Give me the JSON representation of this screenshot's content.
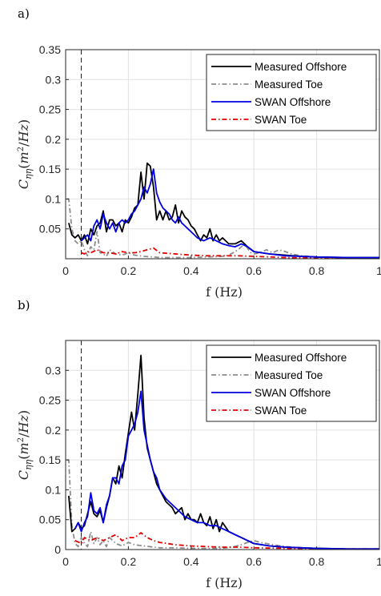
{
  "chart_data": [
    {
      "panel_label": "a)",
      "type": "line",
      "xlabel": "f (Hz)",
      "ylabel": "C_{ηη}(m²/Hz)",
      "xlim": [
        0,
        1
      ],
      "ylim": [
        0,
        0.35
      ],
      "xticks": [
        "0",
        "0.2",
        "0.4",
        "0.6",
        "0.8",
        "1"
      ],
      "yticks": [
        "0.05",
        "0.1",
        "0.15",
        "0.2",
        "0.25",
        "0.3",
        "0.35"
      ],
      "ytick_values": [
        0.05,
        0.1,
        0.15,
        0.2,
        0.25,
        0.3,
        0.35
      ],
      "vline_x": 0.05,
      "grid": true,
      "legend_position": "top-right",
      "series": [
        {
          "name": "Measured Offshore",
          "color": "#000000",
          "dash": "solid",
          "x": [
            0.01,
            0.02,
            0.03,
            0.04,
            0.05,
            0.06,
            0.07,
            0.08,
            0.09,
            0.1,
            0.11,
            0.12,
            0.13,
            0.14,
            0.15,
            0.16,
            0.17,
            0.18,
            0.19,
            0.2,
            0.21,
            0.22,
            0.23,
            0.24,
            0.25,
            0.26,
            0.27,
            0.28,
            0.29,
            0.3,
            0.31,
            0.32,
            0.33,
            0.34,
            0.35,
            0.36,
            0.37,
            0.38,
            0.39,
            0.4,
            0.41,
            0.42,
            0.43,
            0.44,
            0.45,
            0.46,
            0.47,
            0.48,
            0.49,
            0.5,
            0.52,
            0.54,
            0.56,
            0.58,
            0.6,
            0.65,
            0.7,
            0.75,
            0.8,
            0.9,
            1.0
          ],
          "y": [
            0.06,
            0.04,
            0.035,
            0.04,
            0.03,
            0.04,
            0.025,
            0.05,
            0.04,
            0.055,
            0.06,
            0.08,
            0.045,
            0.065,
            0.065,
            0.055,
            0.06,
            0.045,
            0.065,
            0.06,
            0.07,
            0.085,
            0.09,
            0.145,
            0.1,
            0.16,
            0.155,
            0.12,
            0.065,
            0.08,
            0.065,
            0.08,
            0.065,
            0.07,
            0.09,
            0.06,
            0.08,
            0.07,
            0.065,
            0.055,
            0.05,
            0.04,
            0.03,
            0.04,
            0.035,
            0.05,
            0.03,
            0.04,
            0.03,
            0.035,
            0.025,
            0.025,
            0.03,
            0.02,
            0.012,
            0.008,
            0.006,
            0.004,
            0.003,
            0.002,
            0.002
          ]
        },
        {
          "name": "Measured Toe",
          "color": "#8c8c8c",
          "dash": "6,3,1.5,3",
          "x": [
            0.005,
            0.01,
            0.02,
            0.03,
            0.04,
            0.05,
            0.06,
            0.07,
            0.08,
            0.09,
            0.1,
            0.11,
            0.12,
            0.13,
            0.14,
            0.16,
            0.18,
            0.2,
            0.22,
            0.25,
            0.28,
            0.3,
            0.35,
            0.4,
            0.45,
            0.5,
            0.52,
            0.55,
            0.57,
            0.59,
            0.6,
            0.62,
            0.64,
            0.66,
            0.68,
            0.7,
            0.72,
            0.75,
            0.8,
            0.9,
            1.0
          ],
          "y": [
            0.1,
            0.1,
            0.05,
            0.03,
            0.025,
            0.03,
            0.015,
            0.005,
            0.02,
            0.015,
            0.045,
            0.01,
            0.008,
            0.004,
            0.015,
            0.008,
            0.006,
            0.01,
            0.006,
            0.004,
            0.003,
            0.002,
            0.002,
            0.002,
            0.003,
            0.004,
            0.006,
            0.015,
            0.025,
            0.01,
            0.008,
            0.01,
            0.015,
            0.01,
            0.015,
            0.012,
            0.008,
            0.005,
            0.003,
            0.001,
            0.001
          ]
        },
        {
          "name": "SWAN Offshore",
          "color": "#0000e0",
          "dash": "solid",
          "x": [
            0.05,
            0.06,
            0.07,
            0.08,
            0.09,
            0.1,
            0.11,
            0.12,
            0.13,
            0.14,
            0.15,
            0.16,
            0.17,
            0.18,
            0.19,
            0.2,
            0.21,
            0.22,
            0.23,
            0.24,
            0.25,
            0.26,
            0.27,
            0.28,
            0.29,
            0.3,
            0.31,
            0.32,
            0.33,
            0.34,
            0.35,
            0.36,
            0.37,
            0.38,
            0.39,
            0.4,
            0.42,
            0.44,
            0.46,
            0.48,
            0.5,
            0.52,
            0.54,
            0.56,
            0.58,
            0.6,
            0.65,
            0.7,
            0.75,
            0.8,
            0.9,
            1.0
          ],
          "y": [
            0.03,
            0.035,
            0.04,
            0.03,
            0.055,
            0.065,
            0.05,
            0.075,
            0.06,
            0.05,
            0.06,
            0.045,
            0.06,
            0.065,
            0.06,
            0.065,
            0.075,
            0.08,
            0.09,
            0.1,
            0.12,
            0.11,
            0.125,
            0.15,
            0.11,
            0.095,
            0.085,
            0.08,
            0.075,
            0.065,
            0.06,
            0.07,
            0.06,
            0.055,
            0.05,
            0.045,
            0.035,
            0.03,
            0.035,
            0.03,
            0.025,
            0.022,
            0.02,
            0.025,
            0.02,
            0.012,
            0.008,
            0.005,
            0.004,
            0.003,
            0.002,
            0.002
          ]
        },
        {
          "name": "SWAN Toe",
          "color": "#e00000",
          "dash": "6,3,1.5,3",
          "x": [
            0.05,
            0.06,
            0.07,
            0.08,
            0.1,
            0.12,
            0.14,
            0.16,
            0.18,
            0.2,
            0.22,
            0.24,
            0.26,
            0.28,
            0.3,
            0.35,
            0.4,
            0.45,
            0.5,
            0.55,
            0.6,
            0.7,
            0.8,
            0.9,
            1.0
          ],
          "y": [
            0.01,
            0.008,
            0.012,
            0.01,
            0.015,
            0.01,
            0.01,
            0.008,
            0.012,
            0.01,
            0.01,
            0.012,
            0.015,
            0.018,
            0.01,
            0.008,
            0.006,
            0.005,
            0.005,
            0.005,
            0.004,
            0.002,
            0.001,
            0.001,
            0.001
          ]
        }
      ]
    },
    {
      "panel_label": "b)",
      "type": "line",
      "xlabel": "f (Hz)",
      "ylabel": "C_{ηη}(m²/Hz)",
      "xlim": [
        0,
        1
      ],
      "ylim": [
        0,
        0.35
      ],
      "xticks": [
        "0",
        "0.2",
        "0.4",
        "0.6",
        "0.8",
        "1"
      ],
      "yticks": [
        "0",
        "0.05",
        "0.1",
        "0.15",
        "0.2",
        "0.25",
        "0.3"
      ],
      "ytick_values": [
        0,
        0.05,
        0.1,
        0.15,
        0.2,
        0.25,
        0.3
      ],
      "vline_x": 0.05,
      "grid": true,
      "legend_position": "top-right",
      "series": [
        {
          "name": "Measured Offshore",
          "color": "#000000",
          "dash": "solid",
          "x": [
            0.01,
            0.02,
            0.03,
            0.04,
            0.05,
            0.06,
            0.07,
            0.08,
            0.09,
            0.1,
            0.11,
            0.12,
            0.13,
            0.14,
            0.15,
            0.16,
            0.17,
            0.18,
            0.19,
            0.2,
            0.21,
            0.22,
            0.23,
            0.24,
            0.25,
            0.26,
            0.27,
            0.28,
            0.29,
            0.3,
            0.31,
            0.32,
            0.33,
            0.34,
            0.35,
            0.36,
            0.37,
            0.38,
            0.39,
            0.4,
            0.41,
            0.42,
            0.43,
            0.44,
            0.45,
            0.46,
            0.47,
            0.48,
            0.49,
            0.5,
            0.52,
            0.54,
            0.56,
            0.58,
            0.6,
            0.65,
            0.7,
            0.75,
            0.8,
            0.9,
            1.0
          ],
          "y": [
            0.09,
            0.03,
            0.035,
            0.045,
            0.035,
            0.04,
            0.06,
            0.08,
            0.06,
            0.055,
            0.065,
            0.045,
            0.07,
            0.09,
            0.12,
            0.11,
            0.14,
            0.12,
            0.16,
            0.195,
            0.23,
            0.2,
            0.26,
            0.325,
            0.22,
            0.17,
            0.15,
            0.13,
            0.11,
            0.1,
            0.09,
            0.08,
            0.075,
            0.07,
            0.06,
            0.065,
            0.07,
            0.05,
            0.06,
            0.05,
            0.05,
            0.045,
            0.06,
            0.045,
            0.04,
            0.055,
            0.035,
            0.05,
            0.03,
            0.045,
            0.03,
            0.025,
            0.02,
            0.015,
            0.01,
            0.006,
            0.004,
            0.003,
            0.002,
            0.001,
            0.001
          ]
        },
        {
          "name": "Measured Toe",
          "color": "#8c8c8c",
          "dash": "6,3,1.5,3",
          "x": [
            0.005,
            0.01,
            0.02,
            0.03,
            0.04,
            0.05,
            0.06,
            0.07,
            0.08,
            0.09,
            0.1,
            0.11,
            0.12,
            0.13,
            0.14,
            0.16,
            0.18,
            0.2,
            0.22,
            0.25,
            0.28,
            0.3,
            0.35,
            0.4,
            0.45,
            0.5,
            0.53,
            0.56,
            0.58,
            0.6,
            0.62,
            0.64,
            0.66,
            0.7,
            0.75,
            0.8,
            0.9,
            1.0
          ],
          "y": [
            0.15,
            0.15,
            0.04,
            0.01,
            0.005,
            0.02,
            0.01,
            0.005,
            0.03,
            0.01,
            0.02,
            0.008,
            0.015,
            0.005,
            0.02,
            0.01,
            0.006,
            0.012,
            0.008,
            0.006,
            0.004,
            0.003,
            0.003,
            0.002,
            0.002,
            0.002,
            0.004,
            0.008,
            0.012,
            0.015,
            0.012,
            0.01,
            0.008,
            0.005,
            0.003,
            0.002,
            0.001,
            0.001
          ]
        },
        {
          "name": "SWAN Offshore",
          "color": "#0000e0",
          "dash": "solid",
          "x": [
            0.03,
            0.04,
            0.05,
            0.06,
            0.07,
            0.08,
            0.09,
            0.1,
            0.11,
            0.12,
            0.13,
            0.14,
            0.15,
            0.16,
            0.17,
            0.18,
            0.19,
            0.2,
            0.21,
            0.22,
            0.23,
            0.24,
            0.25,
            0.26,
            0.27,
            0.28,
            0.29,
            0.3,
            0.32,
            0.34,
            0.36,
            0.38,
            0.4,
            0.42,
            0.44,
            0.46,
            0.48,
            0.5,
            0.52,
            0.54,
            0.56,
            0.58,
            0.6,
            0.65,
            0.7,
            0.75,
            0.8,
            0.9,
            1.0
          ],
          "y": [
            0.035,
            0.045,
            0.03,
            0.045,
            0.055,
            0.095,
            0.065,
            0.06,
            0.07,
            0.045,
            0.075,
            0.09,
            0.12,
            0.12,
            0.11,
            0.14,
            0.15,
            0.19,
            0.2,
            0.21,
            0.23,
            0.265,
            0.2,
            0.175,
            0.15,
            0.13,
            0.12,
            0.1,
            0.085,
            0.075,
            0.065,
            0.055,
            0.05,
            0.045,
            0.045,
            0.04,
            0.04,
            0.035,
            0.03,
            0.025,
            0.02,
            0.015,
            0.01,
            0.006,
            0.004,
            0.003,
            0.002,
            0.001,
            0.001
          ]
        },
        {
          "name": "SWAN Toe",
          "color": "#e00000",
          "dash": "6,3,1.5,3",
          "x": [
            0.03,
            0.05,
            0.06,
            0.08,
            0.1,
            0.12,
            0.14,
            0.16,
            0.18,
            0.2,
            0.22,
            0.24,
            0.26,
            0.28,
            0.3,
            0.35,
            0.4,
            0.45,
            0.5,
            0.55,
            0.6,
            0.7,
            0.8,
            0.9,
            1.0
          ],
          "y": [
            0.015,
            0.01,
            0.02,
            0.015,
            0.02,
            0.015,
            0.02,
            0.025,
            0.015,
            0.02,
            0.02,
            0.028,
            0.02,
            0.015,
            0.012,
            0.008,
            0.006,
            0.005,
            0.004,
            0.004,
            0.003,
            0.002,
            0.001,
            0.001,
            0.001
          ]
        }
      ]
    }
  ]
}
